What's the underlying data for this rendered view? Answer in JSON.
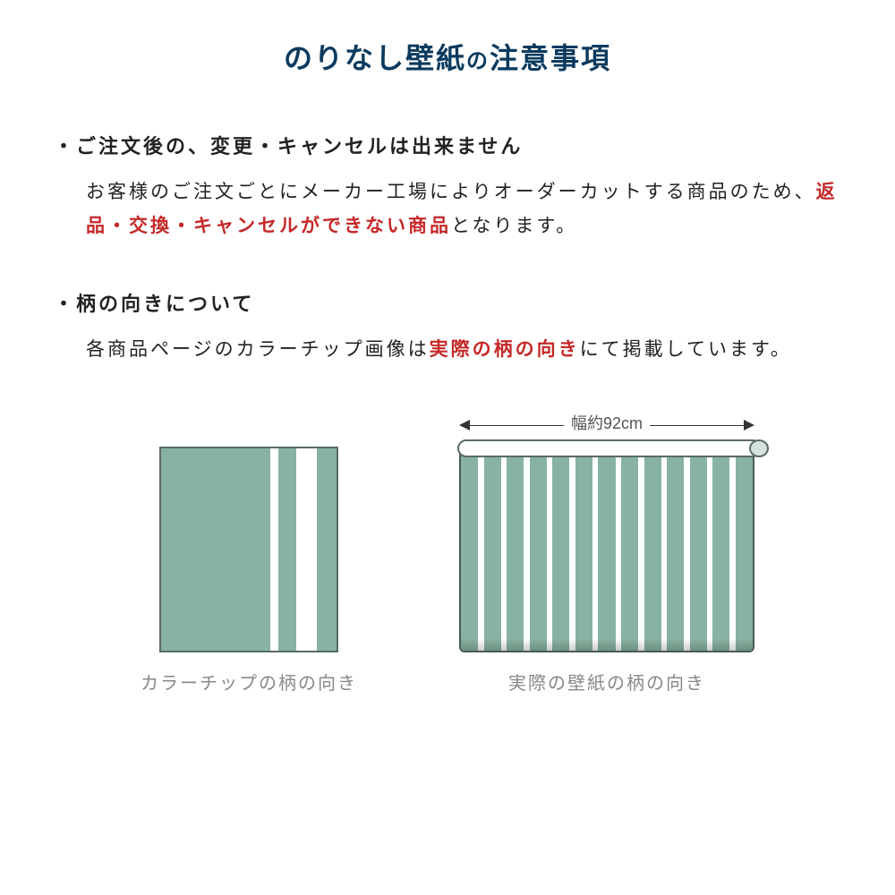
{
  "title": {
    "main": "のりなし壁紙",
    "connector": "の",
    "suffix": "注意事項"
  },
  "section1": {
    "heading": "・ご注文後の、変更・キャンセルは出来ません",
    "body_pre": "お客様のご注文ごとにメーカー工場によりオーダーカットする商品のため、",
    "body_highlight": "返品・交換・キャンセルができない商品",
    "body_post": "となります。"
  },
  "section2": {
    "heading": "・柄の向きについて",
    "body_pre": "各商品ページのカラーチップ画像は",
    "body_highlight": "実際の柄の向き",
    "body_post": "にて掲載しています。"
  },
  "diagram": {
    "width_label": "幅約92cm",
    "caption_left": "カラーチップの柄の向き",
    "caption_right": "実際の壁紙の柄の向き",
    "swatch_color": "#88b3a2",
    "stripe_color": "#ffffff",
    "border_color": "#5a6b6a",
    "small_stripes": [
      {
        "width": "62%",
        "color": "#88b3a2"
      },
      {
        "width": "5%",
        "color": "#ffffff"
      },
      {
        "width": "10%",
        "color": "#88b3a2"
      },
      {
        "width": "12%",
        "color": "#ffffff"
      },
      {
        "width": "11%",
        "color": "#88b3a2"
      }
    ],
    "roll_stripe_count": 13
  },
  "colors": {
    "title_color": "#0b3a5e",
    "text_color": "#222222",
    "highlight_color": "#c62828",
    "caption_color": "#888888",
    "bg_color": "#ffffff"
  }
}
